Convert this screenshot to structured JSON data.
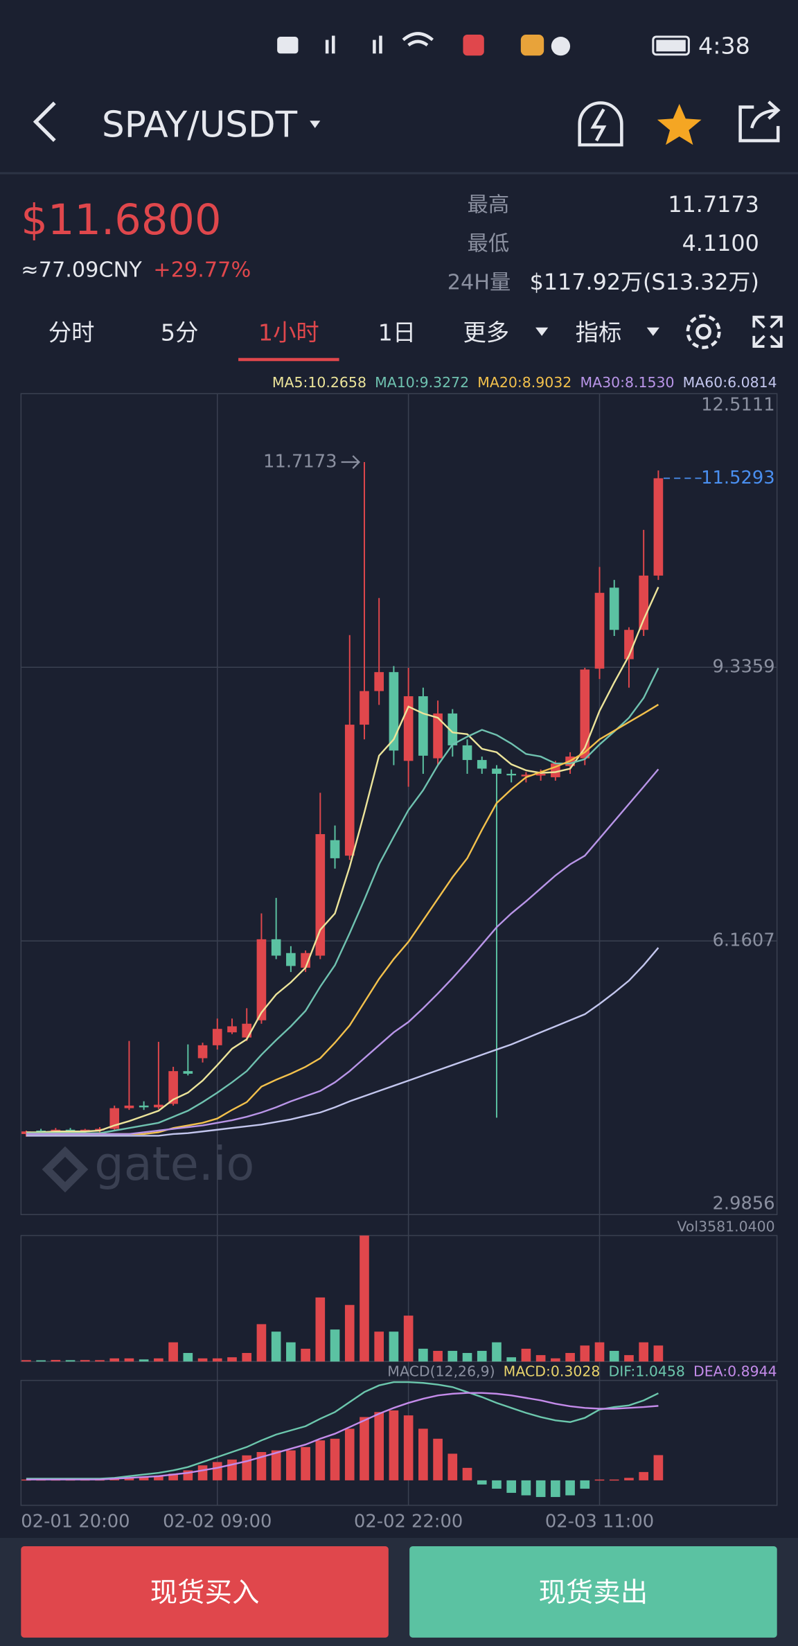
{
  "status_bar": {
    "time": "4:38"
  },
  "header": {
    "pair": "SPAY/USDT"
  },
  "ticker": {
    "price": "$11.6800",
    "cny": "≈77.09CNY",
    "change": "+29.77%",
    "high_label": "最高",
    "high": "11.7173",
    "low_label": "最低",
    "low": "4.1100",
    "vol_label": "24H量",
    "vol": "$117.92万(S13.32万)"
  },
  "tabs": [
    "分时",
    "5分",
    "1小时",
    "1日",
    "更多",
    "指标"
  ],
  "active_tab": 2,
  "watermark": "gate.io",
  "buttons": {
    "buy": "现货买入",
    "sell": "现货卖出"
  },
  "chart_data": [
    {
      "type": "candlestick",
      "categories": [
        "02-01 20:00",
        null,
        null,
        null,
        null,
        null,
        null,
        null,
        null,
        null,
        null,
        null,
        null,
        "02-02 09:00",
        null,
        null,
        null,
        null,
        null,
        null,
        null,
        null,
        null,
        null,
        null,
        null,
        "02-02 22:00",
        null,
        null,
        null,
        null,
        null,
        null,
        null,
        null,
        null,
        null,
        null,
        null,
        "02-03 11:00",
        null,
        null,
        null,
        null
      ],
      "open": [
        3.92,
        3.96,
        3.93,
        3.97,
        3.95,
        3.97,
        3.98,
        4.22,
        4.25,
        4.23,
        4.27,
        4.65,
        4.8,
        4.95,
        5.1,
        5.04,
        5.24,
        6.18,
        6.02,
        5.85,
        5.99,
        7.33,
        7.15,
        8.67,
        9.06,
        9.28,
        8.25,
        9.0,
        8.28,
        8.8,
        8.43,
        8.26,
        8.16,
        8.1,
        8.07,
        8.08,
        8.06,
        8.19,
        8.28,
        9.32,
        10.26,
        9.43,
        9.77,
        10.4
      ],
      "high": [
        3.96,
        3.98,
        3.99,
        3.99,
        3.98,
        4.0,
        4.25,
        5.0,
        4.3,
        4.99,
        4.7,
        4.96,
        4.98,
        5.26,
        5.26,
        5.38,
        6.48,
        6.66,
        6.1,
        6.05,
        7.88,
        7.5,
        9.71,
        11.7173,
        10.14,
        9.35,
        9.33,
        9.1,
        8.95,
        8.85,
        8.5,
        8.3,
        8.2,
        8.15,
        8.12,
        8.15,
        8.25,
        8.35,
        9.33,
        10.5,
        10.35,
        9.8,
        10.93,
        11.62
      ],
      "low": [
        3.89,
        3.92,
        3.91,
        3.93,
        3.92,
        3.94,
        3.97,
        4.2,
        4.2,
        4.21,
        4.25,
        4.6,
        4.75,
        4.9,
        5.08,
        5.0,
        5.2,
        5.95,
        5.8,
        5.8,
        5.95,
        7.0,
        7.1,
        8.5,
        8.9,
        8.2,
        7.95,
        8.1,
        8.2,
        8.3,
        8.1,
        8.1,
        4.11,
        8.0,
        8.0,
        8.02,
        8.02,
        8.1,
        8.2,
        9.2,
        9.7,
        9.1,
        9.7,
        10.35
      ],
      "close": [
        3.95,
        3.93,
        3.97,
        3.95,
        3.97,
        3.98,
        4.22,
        4.25,
        4.23,
        4.26,
        4.65,
        4.62,
        4.95,
        5.14,
        5.17,
        5.2,
        6.18,
        5.99,
        5.87,
        6.02,
        7.4,
        7.12,
        8.67,
        9.06,
        9.28,
        8.37,
        9.0,
        8.31,
        8.8,
        8.43,
        8.26,
        8.16,
        8.1,
        8.09,
        8.09,
        8.1,
        8.22,
        8.3,
        9.31,
        10.2,
        9.77,
        9.77,
        10.4,
        11.5293
      ],
      "up_color": "#e0474c",
      "down_color": "#5bc2a2",
      "ylim": [
        2.9856,
        12.5111
      ],
      "yticks": [
        12.5111,
        9.3359,
        6.1607,
        2.9856
      ],
      "grid": true,
      "series": [
        {
          "name": "MA5",
          "color": "#ece49a",
          "values": [
            3.94,
            3.94,
            3.95,
            3.95,
            3.95,
            3.96,
            4.02,
            4.07,
            4.13,
            4.19,
            4.32,
            4.4,
            4.54,
            4.72,
            4.91,
            5.02,
            5.33,
            5.54,
            5.68,
            5.85,
            6.29,
            6.48,
            7.02,
            7.65,
            8.31,
            8.5,
            8.88,
            8.8,
            8.75,
            8.58,
            8.56,
            8.39,
            8.35,
            8.21,
            8.14,
            8.11,
            8.12,
            8.16,
            8.4,
            8.83,
            9.16,
            9.47,
            9.89,
            10.2658
          ]
        },
        {
          "name": "MA10",
          "color": "#6fc2b0",
          "values": [
            3.93,
            3.93,
            3.93,
            3.93,
            3.93,
            3.93,
            3.96,
            3.99,
            4.02,
            4.05,
            4.12,
            4.19,
            4.29,
            4.4,
            4.52,
            4.65,
            4.84,
            5.01,
            5.17,
            5.35,
            5.63,
            5.88,
            6.25,
            6.64,
            7.05,
            7.37,
            7.68,
            7.91,
            8.2,
            8.44,
            8.53,
            8.61,
            8.55,
            8.45,
            8.33,
            8.3,
            8.22,
            8.22,
            8.27,
            8.44,
            8.59,
            8.75,
            8.98,
            9.3272
          ]
        },
        {
          "name": "MA20",
          "color": "#f3c14c",
          "values": [
            3.92,
            3.92,
            3.92,
            3.92,
            3.92,
            3.92,
            3.92,
            3.92,
            3.92,
            3.94,
            3.99,
            4.02,
            4.05,
            4.1,
            4.2,
            4.29,
            4.47,
            4.55,
            4.62,
            4.7,
            4.8,
            4.98,
            5.18,
            5.45,
            5.72,
            5.95,
            6.15,
            6.4,
            6.65,
            6.9,
            7.12,
            7.45,
            7.76,
            7.92,
            8.06,
            8.12,
            8.18,
            8.25,
            8.35,
            8.5,
            8.6,
            8.7,
            8.8,
            8.9032
          ]
        },
        {
          "name": "MA30",
          "color": "#b995e8",
          "values": [
            3.92,
            3.92,
            3.92,
            3.92,
            3.92,
            3.92,
            3.92,
            3.92,
            3.94,
            3.96,
            3.98,
            4.0,
            4.02,
            4.05,
            4.08,
            4.12,
            4.17,
            4.23,
            4.3,
            4.36,
            4.42,
            4.52,
            4.65,
            4.8,
            4.95,
            5.1,
            5.22,
            5.38,
            5.55,
            5.73,
            5.92,
            6.12,
            6.32,
            6.48,
            6.62,
            6.77,
            6.92,
            7.05,
            7.15,
            7.35,
            7.55,
            7.75,
            7.95,
            8.153
          ]
        },
        {
          "name": "MA60",
          "color": "#c3c6ee",
          "values": [
            3.9,
            3.9,
            3.9,
            3.9,
            3.9,
            3.9,
            3.9,
            3.9,
            3.9,
            3.9,
            3.92,
            3.93,
            3.95,
            3.97,
            3.99,
            4.01,
            4.03,
            4.06,
            4.09,
            4.13,
            4.17,
            4.23,
            4.3,
            4.36,
            4.42,
            4.48,
            4.54,
            4.6,
            4.66,
            4.72,
            4.78,
            4.84,
            4.9,
            4.96,
            5.03,
            5.1,
            5.17,
            5.24,
            5.31,
            5.43,
            5.56,
            5.7,
            5.88,
            6.0814
          ]
        }
      ],
      "legend_labels": [
        "MA5:10.2658",
        "MA10:9.3272",
        "MA20:8.9032",
        "MA30:8.1530",
        "MA60:6.0814"
      ],
      "high_annotation": "11.7173",
      "last_price_label": "11.5293",
      "last_price_color": "#4a8ff0"
    },
    {
      "type": "bar",
      "title": "Vol3581.0400",
      "values": [
        40,
        35,
        45,
        38,
        42,
        40,
        90,
        90,
        60,
        90,
        546,
        243,
        90,
        90,
        121,
        243,
        1062,
        850,
        546,
        364,
        1821,
        910,
        1608,
        3581.04,
        850,
        850,
        1305,
        364,
        303,
        303,
        243,
        303,
        546,
        121,
        364,
        182,
        91,
        243,
        455,
        546,
        303,
        182,
        546,
        455
      ],
      "ylim": [
        0,
        3581.04
      ]
    },
    {
      "type": "macd",
      "title": "MACD(12,26,9)",
      "legend_labels": [
        "MACD:0.3028",
        "DIF:1.0458",
        "DEA:0.8944"
      ],
      "macd_color": "#e8d36b",
      "values": [
        0.01,
        0.01,
        0.01,
        0.01,
        0.01,
        0.01,
        0.02,
        0.03,
        0.04,
        0.05,
        0.08,
        0.12,
        0.18,
        0.22,
        0.25,
        0.3,
        0.34,
        0.36,
        0.36,
        0.4,
        0.48,
        0.5,
        0.62,
        0.76,
        0.82,
        0.84,
        0.78,
        0.62,
        0.5,
        0.32,
        0.15,
        -0.05,
        -0.1,
        -0.15,
        -0.18,
        -0.2,
        -0.2,
        -0.18,
        -0.1,
        0.01,
        0.01,
        0.03,
        0.1,
        0.3028
      ],
      "series": [
        {
          "name": "DIF",
          "color": "#6cc7ad",
          "values": [
            0.02,
            0.02,
            0.02,
            0.02,
            0.02,
            0.02,
            0.03,
            0.05,
            0.07,
            0.09,
            0.12,
            0.16,
            0.22,
            0.28,
            0.34,
            0.4,
            0.48,
            0.55,
            0.6,
            0.65,
            0.74,
            0.82,
            0.94,
            1.06,
            1.14,
            1.18,
            1.18,
            1.17,
            1.15,
            1.12,
            1.06,
            1.0,
            0.93,
            0.87,
            0.81,
            0.76,
            0.72,
            0.7,
            0.75,
            0.85,
            0.88,
            0.9,
            0.96,
            1.0458
          ]
        },
        {
          "name": "DEA",
          "color": "#c48bea",
          "values": [
            0.01,
            0.01,
            0.01,
            0.01,
            0.01,
            0.01,
            0.02,
            0.03,
            0.04,
            0.05,
            0.07,
            0.09,
            0.12,
            0.15,
            0.19,
            0.23,
            0.28,
            0.33,
            0.38,
            0.43,
            0.5,
            0.56,
            0.64,
            0.72,
            0.8,
            0.87,
            0.93,
            0.98,
            1.02,
            1.04,
            1.05,
            1.05,
            1.04,
            1.02,
            0.99,
            0.96,
            0.92,
            0.89,
            0.87,
            0.86,
            0.86,
            0.87,
            0.88,
            0.8944
          ]
        }
      ],
      "ylim": [
        -0.3,
        1.2
      ]
    }
  ]
}
